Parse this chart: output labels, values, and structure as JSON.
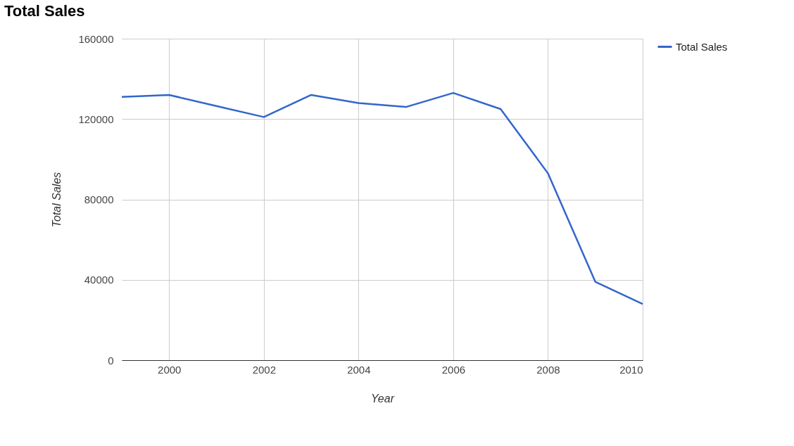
{
  "chart_data": {
    "type": "line",
    "title": "Total Sales",
    "xlabel": "Year",
    "ylabel": "Total Sales",
    "x": [
      1999,
      2000,
      2001,
      2002,
      2003,
      2004,
      2005,
      2006,
      2007,
      2008,
      2009,
      2010
    ],
    "series": [
      {
        "name": "Total Sales",
        "color": "#3366cc",
        "values": [
          131000,
          132000,
          126500,
          121000,
          132000,
          128000,
          126000,
          133000,
          125000,
          93000,
          39000,
          28000
        ]
      }
    ],
    "xlim": [
      1999,
      2010
    ],
    "xticks": [
      2000,
      2002,
      2004,
      2006,
      2008,
      2010
    ],
    "ylim": [
      0,
      160000
    ],
    "yticks": [
      0,
      40000,
      80000,
      120000,
      160000
    ],
    "grid": true,
    "legend": "top right",
    "marker": "none",
    "line_style": "solid"
  }
}
